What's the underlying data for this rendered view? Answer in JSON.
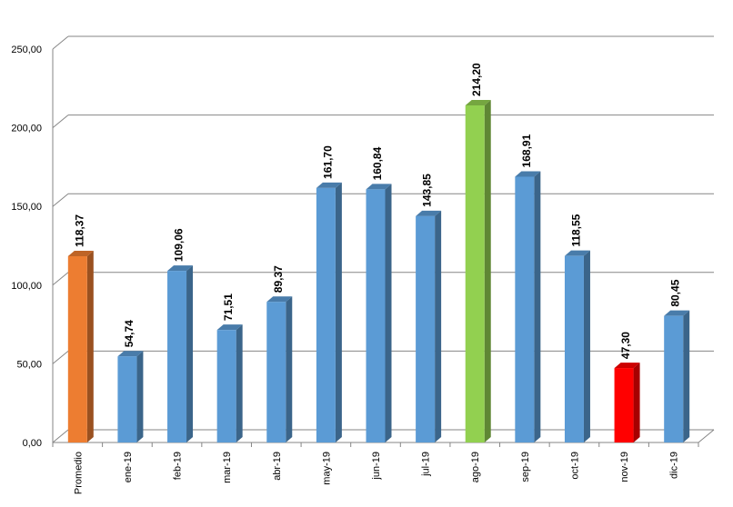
{
  "chart_data": {
    "type": "bar",
    "categories": [
      "Promedio",
      "ene-19",
      "feb-19",
      "mar-19",
      "abr-19",
      "may-19",
      "jun-19",
      "jul-19",
      "ago-19",
      "sep-19",
      "oct-19",
      "nov-19",
      "dic-19"
    ],
    "values": [
      118.37,
      54.74,
      109.06,
      71.51,
      89.37,
      161.7,
      160.84,
      143.85,
      214.2,
      168.91,
      118.55,
      47.3,
      80.45
    ],
    "value_labels": [
      "118,37",
      "54,74",
      "109,06",
      "71,51",
      "89,37",
      "161,70",
      "160,84",
      "143,85",
      "214,20",
      "168,91",
      "118,55",
      "47,30",
      "80,45"
    ],
    "colors": [
      "#ed7d31",
      "#5b9bd5",
      "#5b9bd5",
      "#5b9bd5",
      "#5b9bd5",
      "#5b9bd5",
      "#5b9bd5",
      "#5b9bd5",
      "#92d050",
      "#5b9bd5",
      "#5b9bd5",
      "#ff0000",
      "#5b9bd5"
    ],
    "ylim": [
      0,
      250
    ],
    "yticks": [
      {
        "value": 0,
        "label": "0,00"
      },
      {
        "value": 50,
        "label": "50,00"
      },
      {
        "value": 100,
        "label": "100,00"
      },
      {
        "value": 150,
        "label": "150,00"
      },
      {
        "value": 200,
        "label": "200,00"
      },
      {
        "value": 250,
        "label": "250,00"
      }
    ],
    "grid": true
  }
}
